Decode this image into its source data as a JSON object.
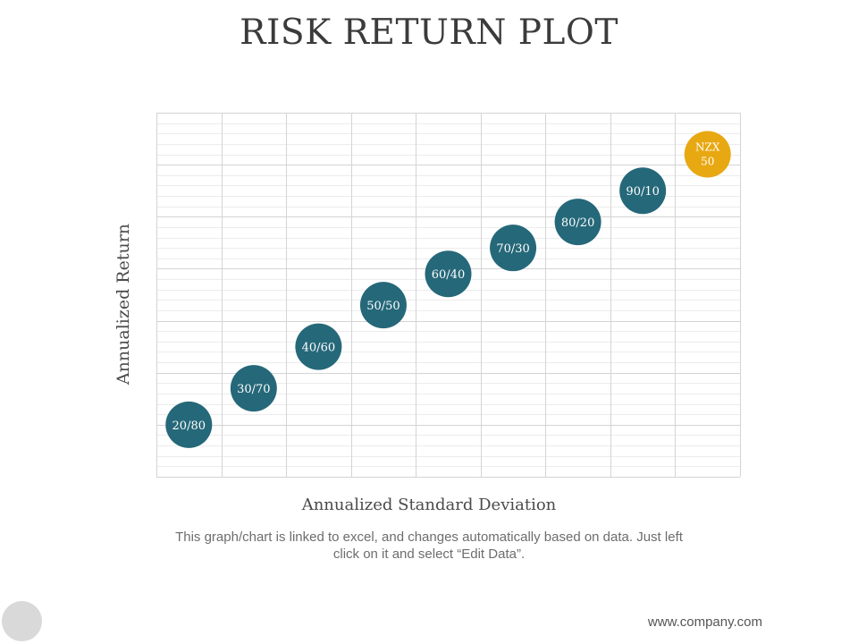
{
  "slide": {
    "title": "RISK RETURN PLOT",
    "caption": "This graph/chart is linked to excel, and changes automatically based on data. Just left click on it and select “Edit Data”.",
    "footer_url": "www.company.com"
  },
  "colors": {
    "bubble_primary": "#256879",
    "bubble_highlight": "#E8A812",
    "grid_major": "#d4d4d4",
    "grid_minor": "#ececec",
    "bubble_text": "#ffffff"
  },
  "chart_data": {
    "type": "scatter",
    "title": "RISK RETURN PLOT",
    "xlabel": "Annualized Standard Deviation",
    "ylabel": "Annualized Return",
    "xlim": [
      0,
      9
    ],
    "ylim": [
      0,
      7
    ],
    "grid": true,
    "legend": "none",
    "series": [
      {
        "points": [
          {
            "label": "20/80",
            "x": 0.5,
            "y": 1.0
          },
          {
            "label": "30/70",
            "x": 1.5,
            "y": 1.7
          },
          {
            "label": "40/60",
            "x": 2.5,
            "y": 2.5
          },
          {
            "label": "50/50",
            "x": 3.5,
            "y": 3.3
          },
          {
            "label": "60/40",
            "x": 4.5,
            "y": 3.9
          },
          {
            "label": "70/30",
            "x": 5.5,
            "y": 4.4
          },
          {
            "label": "80/20",
            "x": 6.5,
            "y": 4.9
          },
          {
            "label": "90/10",
            "x": 7.5,
            "y": 5.5
          }
        ]
      },
      {
        "points": [
          {
            "label": "NZX 50",
            "x": 8.5,
            "y": 6.2
          }
        ]
      }
    ]
  }
}
